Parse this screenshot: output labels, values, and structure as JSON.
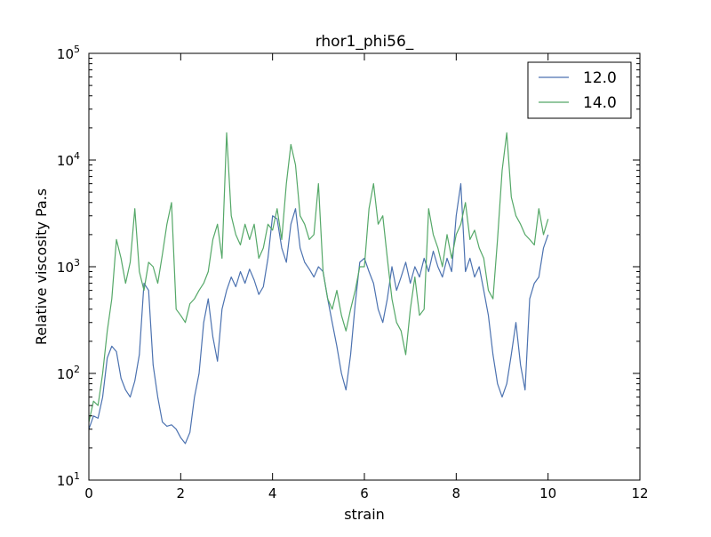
{
  "chart_data": {
    "type": "line",
    "title": "rhor1_phi56_",
    "xlabel": "strain",
    "ylabel": "Relative viscosity Pa.s",
    "xlim": [
      0,
      12
    ],
    "ylim": [
      10,
      100000
    ],
    "yscale": "log",
    "grid": false,
    "legend": "top-right",
    "x_ticks": [
      "0",
      "2",
      "4",
      "6",
      "8",
      "10",
      "12"
    ],
    "y_ticks": [
      {
        "base": "10",
        "exp": "1"
      },
      {
        "base": "10",
        "exp": "2"
      },
      {
        "base": "10",
        "exp": "3"
      },
      {
        "base": "10",
        "exp": "4"
      },
      {
        "base": "10",
        "exp": "5"
      }
    ],
    "series": [
      {
        "name": "12.0",
        "color": "#4c72b0",
        "x": [
          0.0,
          0.1,
          0.2,
          0.3,
          0.4,
          0.5,
          0.6,
          0.7,
          0.8,
          0.9,
          1.0,
          1.1,
          1.2,
          1.3,
          1.4,
          1.5,
          1.6,
          1.7,
          1.8,
          1.9,
          2.0,
          2.1,
          2.2,
          2.3,
          2.4,
          2.5,
          2.6,
          2.7,
          2.8,
          2.9,
          3.0,
          3.1,
          3.2,
          3.3,
          3.4,
          3.5,
          3.6,
          3.7,
          3.8,
          3.9,
          4.0,
          4.1,
          4.2,
          4.3,
          4.4,
          4.5,
          4.6,
          4.7,
          4.8,
          4.9,
          5.0,
          5.1,
          5.2,
          5.3,
          5.4,
          5.5,
          5.6,
          5.7,
          5.8,
          5.9,
          6.0,
          6.1,
          6.2,
          6.3,
          6.4,
          6.5,
          6.6,
          6.7,
          6.8,
          6.9,
          7.0,
          7.1,
          7.2,
          7.3,
          7.4,
          7.5,
          7.6,
          7.7,
          7.8,
          7.9,
          8.0,
          8.1,
          8.2,
          8.3,
          8.4,
          8.5,
          8.6,
          8.7,
          8.8,
          8.9,
          9.0,
          9.1,
          9.2,
          9.3,
          9.4,
          9.5,
          9.6,
          9.7,
          9.8,
          9.9,
          10.0
        ],
        "y": [
          30,
          40,
          38,
          60,
          140,
          180,
          160,
          90,
          70,
          60,
          85,
          150,
          700,
          600,
          120,
          60,
          35,
          32,
          33,
          30,
          25,
          22,
          28,
          60,
          100,
          300,
          500,
          220,
          130,
          400,
          600,
          800,
          650,
          900,
          700,
          950,
          750,
          550,
          650,
          1200,
          3000,
          2800,
          1500,
          1100,
          2500,
          3500,
          1500,
          1100,
          950,
          800,
          1000,
          900,
          500,
          300,
          180,
          100,
          70,
          150,
          450,
          1100,
          1200,
          900,
          700,
          400,
          300,
          500,
          1000,
          600,
          800,
          1100,
          700,
          1000,
          800,
          1200,
          900,
          1400,
          1000,
          800,
          1200,
          900,
          3000,
          6000,
          900,
          1200,
          800,
          1000,
          600,
          350,
          150,
          80,
          60,
          80,
          150,
          300,
          120,
          70,
          500,
          700,
          800,
          1500,
          2000
        ]
      },
      {
        "name": "14.0",
        "color": "#55a868",
        "x": [
          0.0,
          0.1,
          0.2,
          0.3,
          0.4,
          0.5,
          0.6,
          0.7,
          0.8,
          0.9,
          1.0,
          1.1,
          1.2,
          1.3,
          1.4,
          1.5,
          1.6,
          1.7,
          1.8,
          1.9,
          2.0,
          2.1,
          2.2,
          2.3,
          2.4,
          2.5,
          2.6,
          2.7,
          2.8,
          2.9,
          3.0,
          3.1,
          3.2,
          3.3,
          3.4,
          3.5,
          3.6,
          3.7,
          3.8,
          3.9,
          4.0,
          4.1,
          4.2,
          4.3,
          4.4,
          4.5,
          4.6,
          4.7,
          4.8,
          4.9,
          5.0,
          5.1,
          5.2,
          5.3,
          5.4,
          5.5,
          5.6,
          5.7,
          5.8,
          5.9,
          6.0,
          6.1,
          6.2,
          6.3,
          6.4,
          6.5,
          6.6,
          6.7,
          6.8,
          6.9,
          7.0,
          7.1,
          7.2,
          7.3,
          7.4,
          7.5,
          7.6,
          7.7,
          7.8,
          7.9,
          8.0,
          8.1,
          8.2,
          8.3,
          8.4,
          8.5,
          8.6,
          8.7,
          8.8,
          8.9,
          9.0,
          9.1,
          9.2,
          9.3,
          9.4,
          9.5,
          9.6,
          9.7,
          9.8,
          9.9,
          10.0
        ],
        "y": [
          35,
          55,
          50,
          100,
          250,
          500,
          1800,
          1200,
          700,
          1100,
          3500,
          900,
          600,
          1100,
          1000,
          700,
          1300,
          2500,
          4000,
          400,
          350,
          300,
          450,
          500,
          600,
          700,
          900,
          1800,
          2500,
          1200,
          18000,
          3000,
          2000,
          1600,
          2500,
          1800,
          2500,
          1200,
          1500,
          2500,
          2200,
          3500,
          1800,
          6000,
          14000,
          9000,
          3000,
          2500,
          1800,
          2000,
          6000,
          900,
          500,
          400,
          600,
          350,
          250,
          400,
          600,
          1000,
          1000,
          3500,
          6000,
          2500,
          3000,
          1200,
          500,
          300,
          250,
          150,
          400,
          800,
          350,
          400,
          3500,
          2000,
          1500,
          1000,
          2000,
          1200,
          2000,
          2500,
          4000,
          1800,
          2200,
          1500,
          1200,
          600,
          500,
          1800,
          8000,
          18000,
          4500,
          3000,
          2500,
          2000,
          1800,
          1600,
          3500,
          2000,
          2800
        ]
      }
    ]
  }
}
